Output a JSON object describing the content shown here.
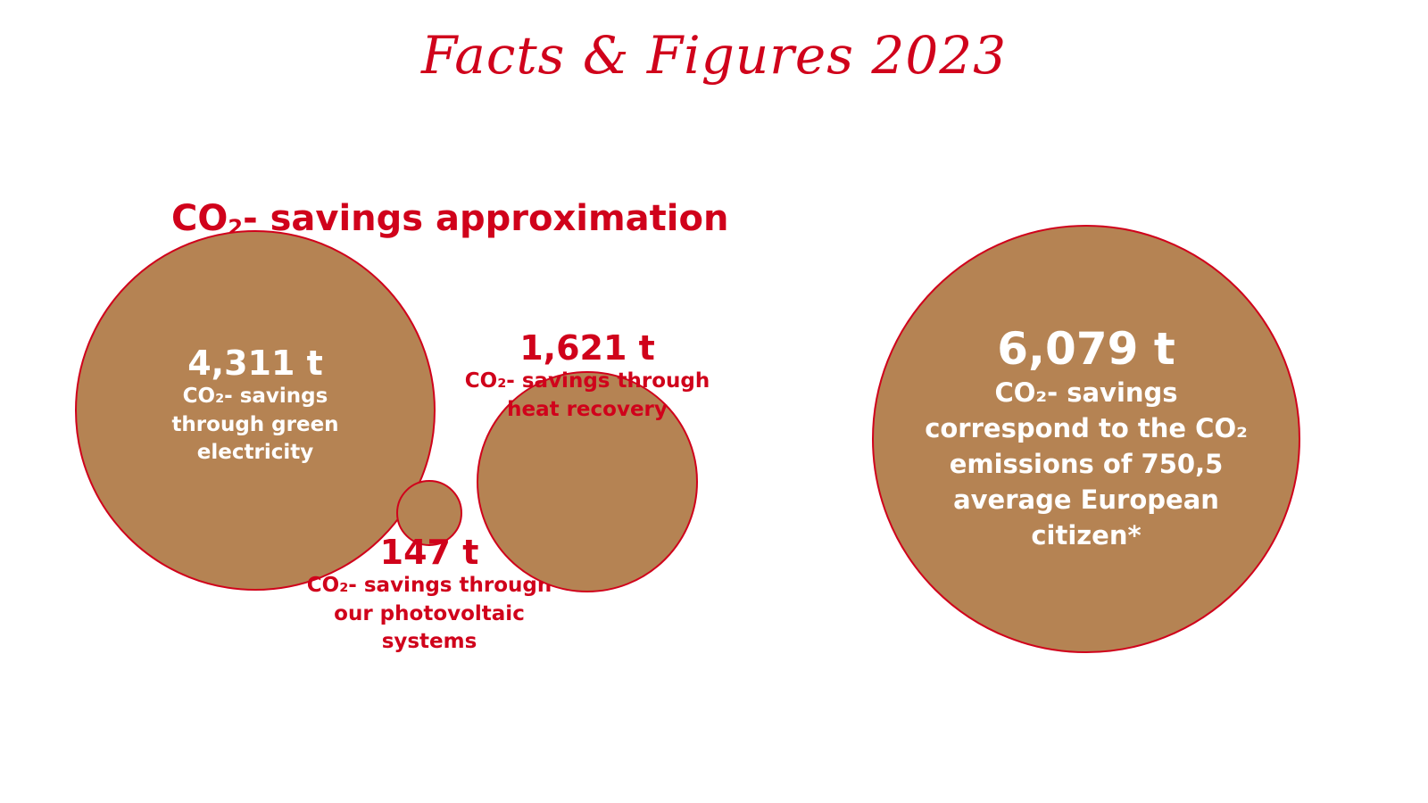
{
  "title": "Facts & Figures 2023",
  "section": {
    "prefix": "CO",
    "sub": "2",
    "suffix": "- savings approximation"
  },
  "colors": {
    "accent_red": "#d0021b",
    "bubble_fill": "#b58353",
    "text_on_bubble": "#ffffff"
  },
  "chart_data": {
    "type": "bubble",
    "unit": "t",
    "items": [
      {
        "name": "green electricity",
        "value": 4311,
        "value_label": "4,311 t",
        "desc_lines": [
          "CO₂- savings",
          "through green",
          "electricity"
        ]
      },
      {
        "name": "photovoltaic systems",
        "value": 147,
        "value_label": "147 t",
        "desc_lines": [
          "CO₂- savings through",
          "our photovoltaic",
          "systems"
        ]
      },
      {
        "name": "heat recovery",
        "value": 1621,
        "value_label": "1,621 t",
        "desc_lines": [
          "CO₂- savings through",
          "heat recovery"
        ]
      },
      {
        "name": "total",
        "value": 6079,
        "value_label": "6,079 t",
        "desc_lines": [
          "CO₂- savings",
          "correspond to the CO₂",
          "emissions of 750,5",
          "average European",
          "citizen*"
        ]
      }
    ]
  }
}
